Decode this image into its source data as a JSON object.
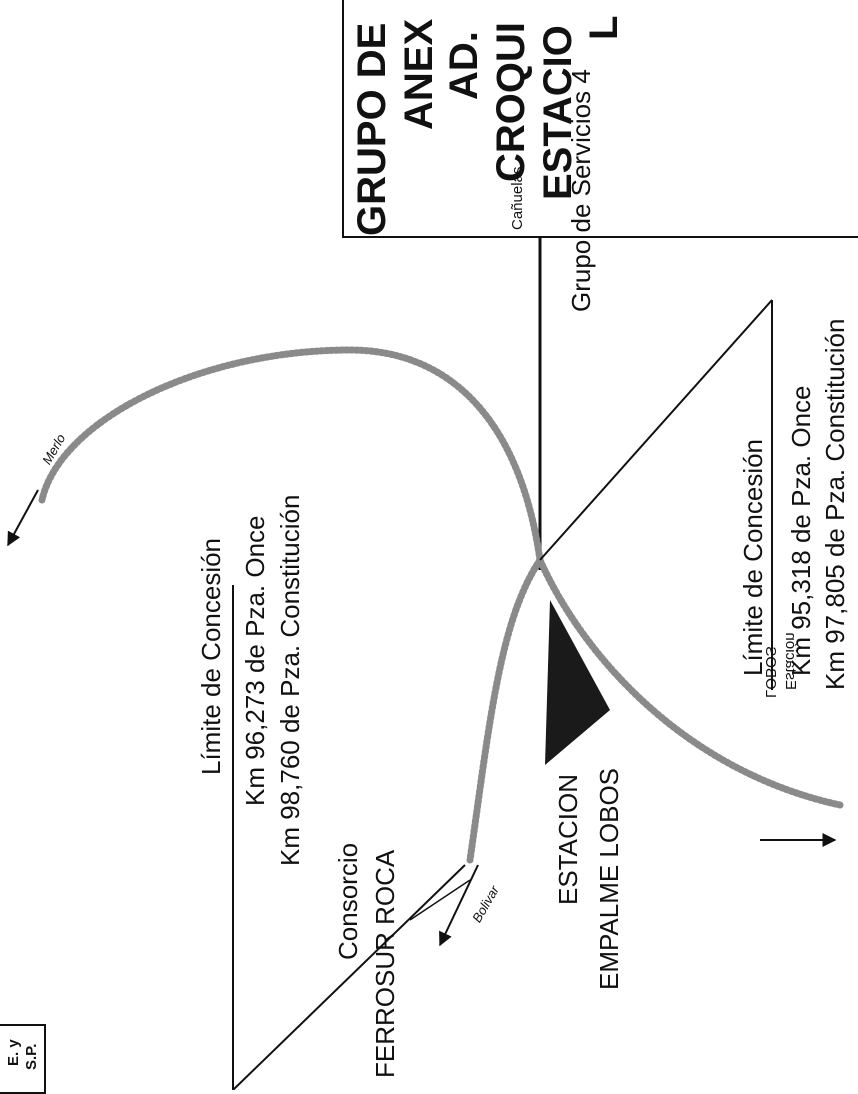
{
  "title_lines": [
    "GRUPO DE",
    "ANEX",
    "AD.",
    "CROQUI",
    "ESTACIO",
    "L"
  ],
  "stamp_lines": [
    "E. y",
    "S.P."
  ],
  "directions": {
    "canuelas": "Cañuelas",
    "merlo": "Merlo",
    "bolivar": "Bolivar"
  },
  "grupo_servicios": "Grupo de Servicios 4",
  "limite_right": {
    "heading": "Límite de Concesión",
    "km_once": "Km 95,318 de Pza. Once",
    "km_constitucion": "Km 97,805 de Pza. Constitución"
  },
  "limite_left": {
    "heading": "Límite de Concesión",
    "km_once": "Km 96,273 de Pza. Once",
    "km_constitucion": "Km 98,760 de Pza. Constitución"
  },
  "estacion_lobos": [
    "Estación",
    "LOBOS"
  ],
  "empalme": [
    "ESTACION",
    "EMPALME LOBOS"
  ],
  "consorcio": [
    "Consorcio",
    "FERROSUR ROCA"
  ]
}
